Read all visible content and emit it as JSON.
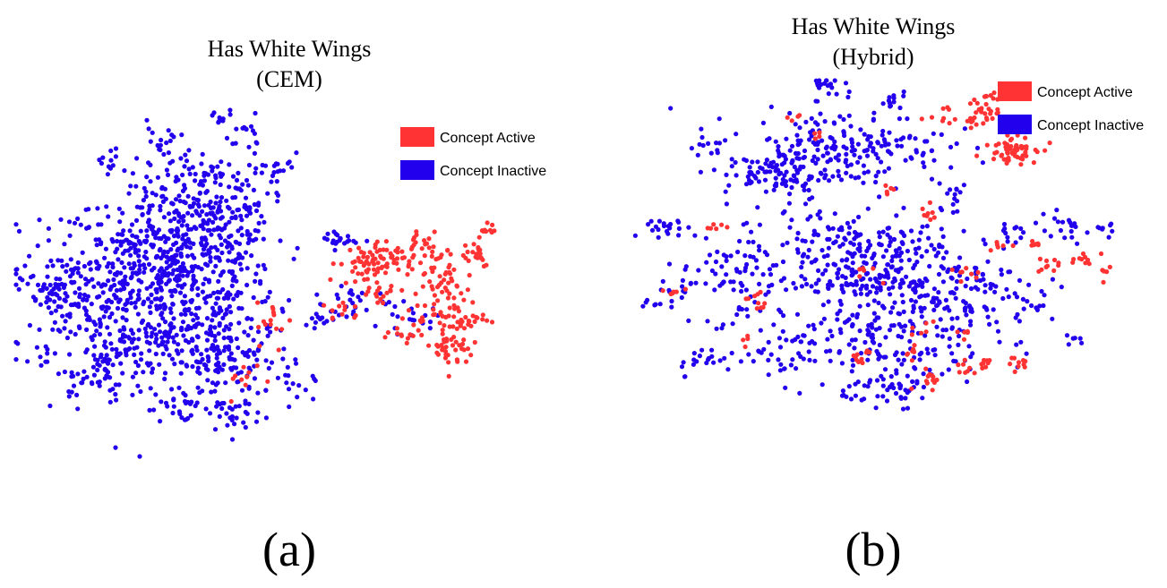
{
  "figure": {
    "captions": [
      "(a)",
      "(b)"
    ]
  },
  "chart_data": [
    {
      "type": "scatter",
      "title": "Has White Wings",
      "subtitle": "(CEM)",
      "xlabel": "",
      "ylabel": "",
      "axes_visible": false,
      "grid": false,
      "legend": {
        "placement": "top-right",
        "entries": [
          {
            "label": "Concept Active",
            "color": "#ff3333"
          },
          {
            "label": "Concept Inactive",
            "color": "#2200ee"
          }
        ]
      },
      "xlim": [
        0,
        100
      ],
      "ylim": [
        0,
        100
      ],
      "series": [
        {
          "name": "Concept Inactive",
          "color": "#2200ee",
          "clusters": [
            {
              "x": 32,
              "y": 50,
              "sx": 11,
              "sy": 14,
              "n": 700
            },
            {
              "x": 40,
              "y": 72,
              "sx": 6,
              "sy": 8,
              "n": 180
            },
            {
              "x": 16,
              "y": 45,
              "sx": 7,
              "sy": 10,
              "n": 140
            },
            {
              "x": 44,
              "y": 28,
              "sx": 7,
              "sy": 6,
              "n": 140
            },
            {
              "x": 20,
              "y": 25,
              "sx": 4,
              "sy": 4,
              "n": 50
            },
            {
              "x": 45,
              "y": 12,
              "sx": 3,
              "sy": 3,
              "n": 30
            },
            {
              "x": 8,
              "y": 48,
              "sx": 3,
              "sy": 5,
              "n": 35
            },
            {
              "x": 55,
              "y": 82,
              "sx": 2,
              "sy": 2,
              "n": 15
            },
            {
              "x": 48,
              "y": 92,
              "sx": 2,
              "sy": 2,
              "n": 12
            },
            {
              "x": 42,
              "y": 96,
              "sx": 1.5,
              "sy": 1.5,
              "n": 10
            },
            {
              "x": 67,
              "y": 62,
              "sx": 2,
              "sy": 1.5,
              "n": 20
            },
            {
              "x": 63,
              "y": 38,
              "sx": 2,
              "sy": 2,
              "n": 12
            },
            {
              "x": 70,
              "y": 44,
              "sx": 3,
              "sy": 3,
              "n": 25
            },
            {
              "x": 82,
              "y": 39,
              "sx": 3,
              "sy": 2,
              "n": 20
            },
            {
              "x": 30,
              "y": 90,
              "sx": 2,
              "sy": 2,
              "n": 15
            },
            {
              "x": 20,
              "y": 85,
              "sx": 2,
              "sy": 2,
              "n": 10
            },
            {
              "x": 5,
              "y": 30,
              "sx": 2,
              "sy": 2,
              "n": 10
            },
            {
              "x": 12,
              "y": 20,
              "sx": 2,
              "sy": 2,
              "n": 8
            },
            {
              "x": 58,
              "y": 20,
              "sx": 2,
              "sy": 2,
              "n": 8
            },
            {
              "x": 2,
              "y": 52,
              "sx": 1.5,
              "sy": 1.5,
              "n": 6
            },
            {
              "x": 35,
              "y": 15,
              "sx": 3,
              "sy": 3,
              "n": 20
            }
          ]
        },
        {
          "name": "Concept Active",
          "color": "#ff3333",
          "clusters": [
            {
              "x": 73,
              "y": 55,
              "sx": 3,
              "sy": 3,
              "n": 70
            },
            {
              "x": 83,
              "y": 58,
              "sx": 2,
              "sy": 3,
              "n": 30
            },
            {
              "x": 88,
              "y": 52,
              "sx": 3,
              "sy": 4,
              "n": 40
            },
            {
              "x": 90,
              "y": 40,
              "sx": 4,
              "sy": 4,
              "n": 70
            },
            {
              "x": 91,
              "y": 30,
              "sx": 2,
              "sy": 3,
              "n": 30
            },
            {
              "x": 95,
              "y": 58,
              "sx": 2,
              "sy": 2,
              "n": 20
            },
            {
              "x": 98,
              "y": 65,
              "sx": 1.5,
              "sy": 1.5,
              "n": 10
            },
            {
              "x": 80,
              "y": 34,
              "sx": 1.5,
              "sy": 1.5,
              "n": 8
            },
            {
              "x": 68,
              "y": 42,
              "sx": 2,
              "sy": 2,
              "n": 12
            },
            {
              "x": 54,
              "y": 38,
              "sx": 2,
              "sy": 3,
              "n": 15
            },
            {
              "x": 48,
              "y": 22,
              "sx": 2,
              "sy": 3,
              "n": 10
            },
            {
              "x": 76,
              "y": 46,
              "sx": 2,
              "sy": 2,
              "n": 15
            }
          ]
        }
      ]
    },
    {
      "type": "scatter",
      "title": "Has White Wings",
      "subtitle": "(Hybrid)",
      "xlabel": "",
      "ylabel": "",
      "axes_visible": false,
      "grid": false,
      "legend": {
        "placement": "top-right",
        "entries": [
          {
            "label": "Concept Active",
            "color": "#ff3333"
          },
          {
            "label": "Concept Inactive",
            "color": "#2200ee"
          }
        ]
      },
      "xlim": [
        0,
        100
      ],
      "ylim": [
        0,
        100
      ],
      "series": [
        {
          "name": "Concept Inactive",
          "color": "#2200ee",
          "clusters": [
            {
              "x": 45,
              "y": 82,
              "sx": 10,
              "sy": 5,
              "n": 200
            },
            {
              "x": 32,
              "y": 75,
              "sx": 5,
              "sy": 3,
              "n": 80
            },
            {
              "x": 45,
              "y": 52,
              "sx": 11,
              "sy": 7,
              "n": 260
            },
            {
              "x": 62,
              "y": 46,
              "sx": 10,
              "sy": 6,
              "n": 160
            },
            {
              "x": 50,
              "y": 30,
              "sx": 12,
              "sy": 6,
              "n": 180
            },
            {
              "x": 24,
              "y": 45,
              "sx": 4,
              "sy": 6,
              "n": 50
            },
            {
              "x": 10,
              "y": 60,
              "sx": 2,
              "sy": 2,
              "n": 20
            },
            {
              "x": 13,
              "y": 45,
              "sx": 2,
              "sy": 3,
              "n": 15
            },
            {
              "x": 18,
              "y": 25,
              "sx": 3,
              "sy": 2,
              "n": 20
            },
            {
              "x": 55,
              "y": 17,
              "sx": 5,
              "sy": 2,
              "n": 50
            },
            {
              "x": 43,
              "y": 98,
              "sx": 2,
              "sy": 2,
              "n": 20
            },
            {
              "x": 55,
              "y": 94,
              "sx": 2,
              "sy": 2,
              "n": 12
            },
            {
              "x": 18,
              "y": 82,
              "sx": 2,
              "sy": 1.5,
              "n": 12
            },
            {
              "x": 88,
              "y": 60,
              "sx": 3,
              "sy": 2,
              "n": 20
            },
            {
              "x": 96,
              "y": 60,
              "sx": 1.5,
              "sy": 1.5,
              "n": 8
            },
            {
              "x": 78,
              "y": 58,
              "sx": 2,
              "sy": 2,
              "n": 12
            },
            {
              "x": 8,
              "y": 40,
              "sx": 1.5,
              "sy": 1.5,
              "n": 8
            },
            {
              "x": 90,
              "y": 30,
              "sx": 1.5,
              "sy": 1.5,
              "n": 6
            },
            {
              "x": 72,
              "y": 38,
              "sx": 2,
              "sy": 2,
              "n": 15
            },
            {
              "x": 82,
              "y": 40,
              "sx": 2,
              "sy": 2,
              "n": 10
            },
            {
              "x": 66,
              "y": 68,
              "sx": 2,
              "sy": 2,
              "n": 15
            },
            {
              "x": 30,
              "y": 25,
              "sx": 2,
              "sy": 2,
              "n": 10
            }
          ]
        },
        {
          "name": "Concept Active",
          "color": "#ff3333",
          "clusters": [
            {
              "x": 78,
              "y": 82,
              "sx": 2.5,
              "sy": 2,
              "n": 60
            },
            {
              "x": 73,
              "y": 92,
              "sx": 2,
              "sy": 2,
              "n": 35
            },
            {
              "x": 66,
              "y": 90,
              "sx": 2,
              "sy": 2,
              "n": 12
            },
            {
              "x": 62,
              "y": 64,
              "sx": 1,
              "sy": 1.5,
              "n": 8
            },
            {
              "x": 76,
              "y": 56,
              "sx": 1,
              "sy": 1,
              "n": 6
            },
            {
              "x": 82,
              "y": 56,
              "sx": 1,
              "sy": 1,
              "n": 6
            },
            {
              "x": 86,
              "y": 50,
              "sx": 1.5,
              "sy": 1,
              "n": 10
            },
            {
              "x": 92,
              "y": 52,
              "sx": 1.5,
              "sy": 1,
              "n": 10
            },
            {
              "x": 96,
              "y": 48,
              "sx": 1,
              "sy": 1,
              "n": 5
            },
            {
              "x": 70,
              "y": 48,
              "sx": 1.5,
              "sy": 1.5,
              "n": 8
            },
            {
              "x": 58,
              "y": 27,
              "sx": 1,
              "sy": 1,
              "n": 8
            },
            {
              "x": 62,
              "y": 20,
              "sx": 1.5,
              "sy": 1.5,
              "n": 12
            },
            {
              "x": 68,
              "y": 22,
              "sx": 1,
              "sy": 1,
              "n": 8
            },
            {
              "x": 73,
              "y": 24,
              "sx": 1,
              "sy": 1,
              "n": 8
            },
            {
              "x": 79,
              "y": 24,
              "sx": 1.5,
              "sy": 1,
              "n": 10
            },
            {
              "x": 49,
              "y": 25,
              "sx": 1.5,
              "sy": 1.5,
              "n": 10
            },
            {
              "x": 60,
              "y": 33,
              "sx": 1.5,
              "sy": 1.5,
              "n": 6
            },
            {
              "x": 28,
              "y": 40,
              "sx": 1,
              "sy": 1.5,
              "n": 10
            },
            {
              "x": 12,
              "y": 43,
              "sx": 1,
              "sy": 1,
              "n": 6
            },
            {
              "x": 20,
              "y": 60,
              "sx": 1,
              "sy": 1,
              "n": 6
            },
            {
              "x": 35,
              "y": 90,
              "sx": 1,
              "sy": 1,
              "n": 4
            },
            {
              "x": 40,
              "y": 86,
              "sx": 1,
              "sy": 1,
              "n": 4
            },
            {
              "x": 54,
              "y": 70,
              "sx": 1,
              "sy": 1,
              "n": 5
            },
            {
              "x": 49,
              "y": 50,
              "sx": 1.5,
              "sy": 1.5,
              "n": 6
            },
            {
              "x": 69,
              "y": 32,
              "sx": 1,
              "sy": 1,
              "n": 5
            },
            {
              "x": 26,
              "y": 30,
              "sx": 1,
              "sy": 1,
              "n": 4
            }
          ]
        }
      ]
    }
  ]
}
